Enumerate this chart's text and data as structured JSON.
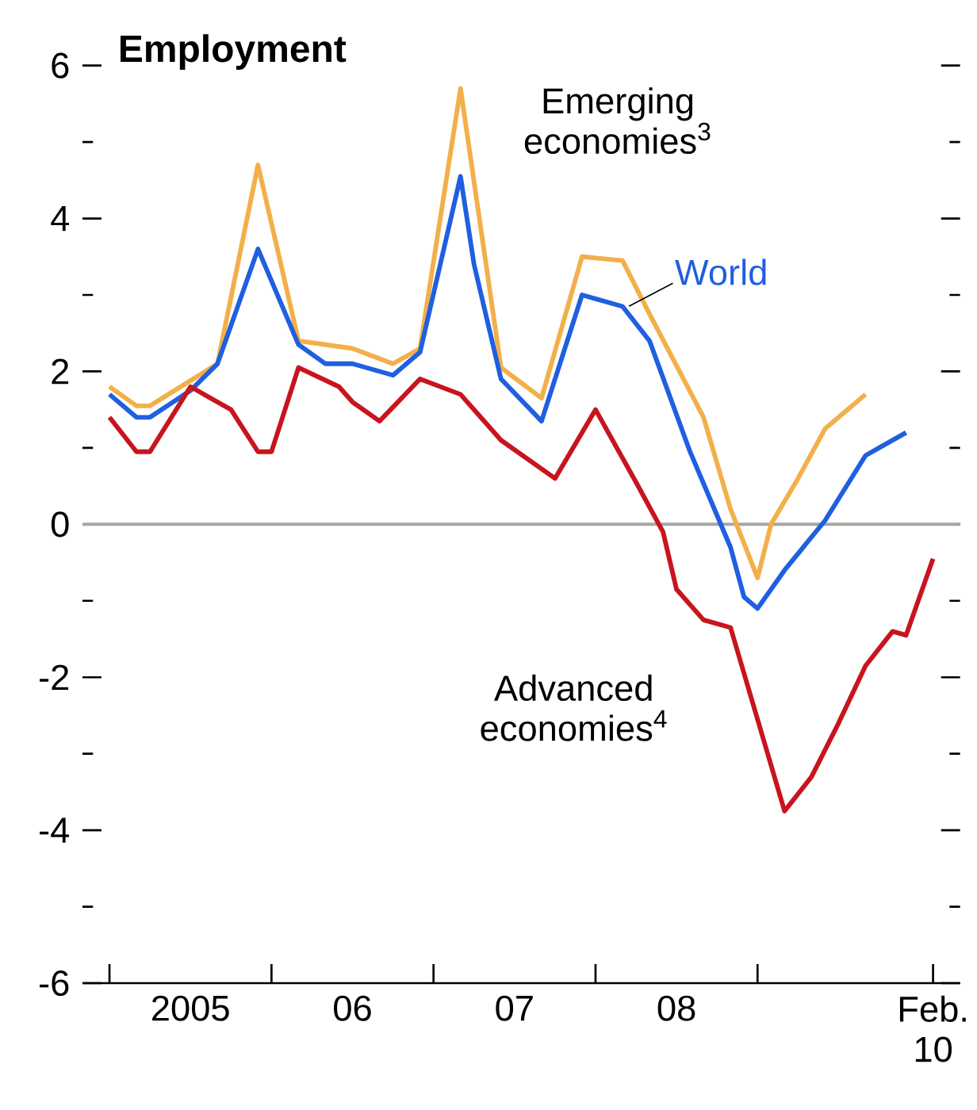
{
  "chart_data": {
    "type": "line",
    "title": "Employment",
    "xlim": [
      "2004-11",
      "2010-04"
    ],
    "ylim": [
      -6,
      6
    ],
    "xticks": [
      {
        "value": "2005-01",
        "label": null
      },
      {
        "value": "2005-07",
        "label": "2005"
      },
      {
        "value": "2006-01",
        "label": null
      },
      {
        "value": "2006-07",
        "label": "06"
      },
      {
        "value": "2007-01",
        "label": null
      },
      {
        "value": "2007-07",
        "label": "07"
      },
      {
        "value": "2008-01",
        "label": null
      },
      {
        "value": "2008-07",
        "label": "08"
      },
      {
        "value": "2009-01",
        "label": null
      },
      {
        "value": "2010-02",
        "label": null
      },
      {
        "value": "2010-02",
        "label": "Feb. 10"
      }
    ],
    "yticks": [
      -6,
      {
        "value": -5,
        "label": null
      },
      -4,
      {
        "value": -3,
        "label": null
      },
      -2,
      {
        "value": -1,
        "label": null
      },
      0,
      {
        "value": 1,
        "label": null
      },
      2,
      {
        "value": 3,
        "label": null
      },
      4,
      {
        "value": 5,
        "label": null
      },
      6
    ],
    "ref_lines": [
      {
        "axis": "y",
        "value": 0,
        "color": "#a6a6a6"
      }
    ],
    "series": [
      {
        "name": "Emerging economies$^{3}$",
        "color": "#f2b04a",
        "x": [
          "2005-01",
          "2005-03",
          "2005-04",
          "2005-09",
          "2005-12",
          "2006-03",
          "2006-07",
          "2006-10",
          "2006-12",
          "2007-03",
          "2007-06",
          "2007-09",
          "2007-12",
          "2008-03",
          "2008-05",
          "2008-09",
          "2008-11",
          "2009-01",
          "2009-02",
          "2009-04",
          "2009-06",
          "2009-09"
        ],
        "values": [
          1.8,
          1.55,
          1.55,
          2.1,
          4.7,
          2.4,
          2.3,
          2.1,
          2.3,
          5.7,
          2.05,
          1.65,
          3.5,
          3.45,
          2.75,
          1.4,
          0.2,
          -0.7,
          0.0,
          0.6,
          1.25,
          1.7
        ]
      },
      {
        "name": "World",
        "color": "#1f5fe0",
        "x": [
          "2005-01",
          "2005-03",
          "2005-04",
          "2005-07",
          "2005-09",
          "2005-12",
          "2006-03",
          "2006-05",
          "2006-07",
          "2006-10",
          "2006-12",
          "2007-03",
          "2007-04",
          "2007-06",
          "2007-09",
          "2007-12",
          "2008-01",
          "2008-03",
          "2008-05",
          "2008-08",
          "2008-11",
          "2008-12",
          "2009-01",
          "2009-03",
          "2009-06",
          "2009-09",
          "2009-10",
          "2009-12"
        ],
        "values": [
          1.7,
          1.4,
          1.4,
          1.75,
          2.1,
          3.6,
          2.35,
          2.1,
          2.1,
          1.95,
          2.25,
          4.55,
          3.4,
          1.9,
          1.35,
          3.0,
          2.95,
          2.85,
          2.4,
          0.95,
          -0.3,
          -0.95,
          -1.1,
          -0.6,
          0.05,
          0.9,
          1.0,
          1.2
        ]
      },
      {
        "name": "Advanced economies$^{4}$",
        "color": "#c8141e",
        "x": [
          "2005-01",
          "2005-03",
          "2005-04",
          "2005-07",
          "2005-10",
          "2005-12",
          "2006-01",
          "2006-03",
          "2006-06",
          "2006-07",
          "2006-09",
          "2006-12",
          "2007-03",
          "2007-06",
          "2007-10",
          "2008-01",
          "2008-04",
          "2008-06",
          "2008-07",
          "2008-09",
          "2008-11",
          "2009-03",
          "2009-05",
          "2009-07",
          "2009-09",
          "2009-11",
          "2009-12",
          "2010-02"
        ],
        "values": [
          1.4,
          0.95,
          0.95,
          1.8,
          1.5,
          0.95,
          0.95,
          2.05,
          1.8,
          1.6,
          1.35,
          1.9,
          1.7,
          1.1,
          0.6,
          1.5,
          0.55,
          -0.1,
          -0.85,
          -1.25,
          -1.35,
          -3.75,
          -3.3,
          -2.6,
          -1.85,
          -1.4,
          -1.45,
          -0.45
        ]
      }
    ]
  }
}
